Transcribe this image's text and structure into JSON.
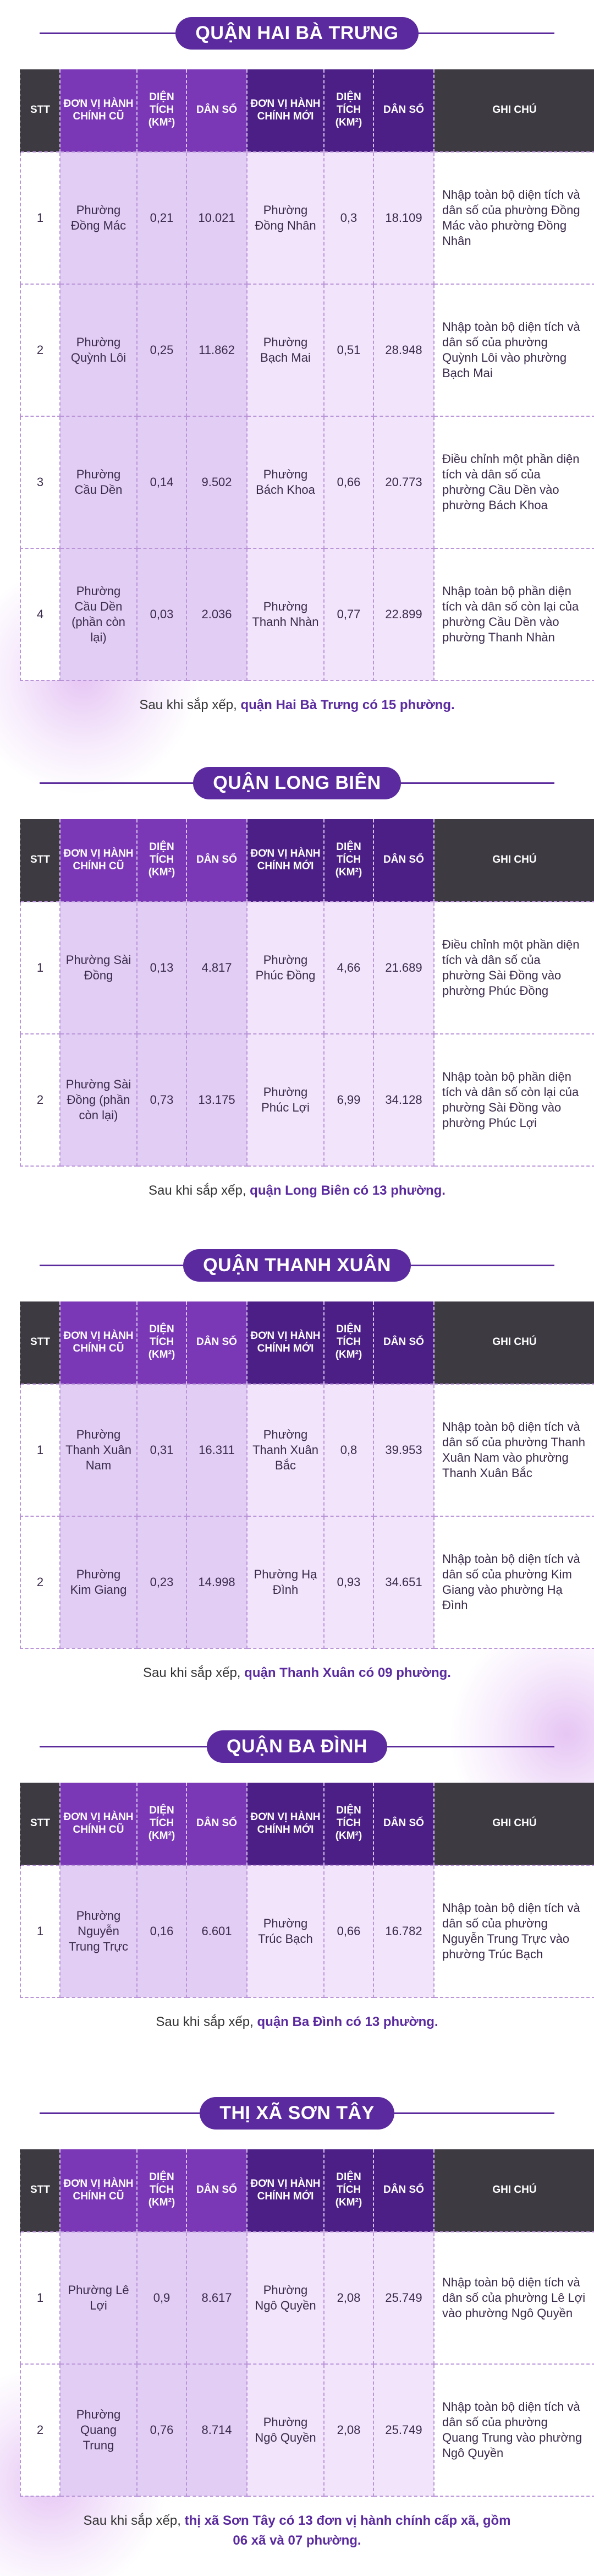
{
  "headers": {
    "stt": "STT",
    "old_unit": "ĐƠN VỊ HÀNH CHÍNH CŨ",
    "area": "DIỆN TÍCH (KM²)",
    "population": "DÂN SỐ",
    "new_unit": "ĐƠN VỊ HÀNH CHÍNH MỚI",
    "note": "GHI CHÚ"
  },
  "sections": [
    {
      "title": "QUẬN HAI BÀ TRƯNG",
      "rows": [
        {
          "stt": "1",
          "old": "Phường Đồng Mác",
          "old_area": "0,21",
          "old_pop": "10.021",
          "new": "Phường Đồng Nhân",
          "new_area": "0,3",
          "new_pop": "18.109",
          "note": "Nhập toàn bộ diện tích và dân số của phường Đồng Mác vào phường Đồng Nhân"
        },
        {
          "stt": "2",
          "old": "Phường Quỳnh Lôi",
          "old_area": "0,25",
          "old_pop": "11.862",
          "new": "Phường Bạch Mai",
          "new_area": "0,51",
          "new_pop": "28.948",
          "note": "Nhập toàn bộ diện tích và dân số của phường Quỳnh Lôi vào phường Bạch Mai"
        },
        {
          "stt": "3",
          "old": "Phường Cầu Dền",
          "old_area": "0,14",
          "old_pop": "9.502",
          "new": "Phường Bách Khoa",
          "new_area": "0,66",
          "new_pop": "20.773",
          "note": "Điều chỉnh một phần diện tích và dân số của phường Cầu Dền vào phường Bách Khoa"
        },
        {
          "stt": "4",
          "old": "Phường Cầu Dền (phần còn lại)",
          "old_area": "0,03",
          "old_pop": "2.036",
          "new": "Phường Thanh Nhàn",
          "new_area": "0,77",
          "new_pop": "22.899",
          "note": "Nhập toàn bộ phần diện tích và dân số còn lại của phường Cầu Dền vào phường Thanh Nhàn"
        }
      ],
      "caption_prefix": "Sau khi sắp xếp, ",
      "caption_bold": "quận Hai Bà Trưng có 15 phường."
    },
    {
      "title": "QUẬN LONG BIÊN",
      "rows": [
        {
          "stt": "1",
          "old": "Phường Sài Đồng",
          "old_area": "0,13",
          "old_pop": "4.817",
          "new": "Phường Phúc Đồng",
          "new_area": "4,66",
          "new_pop": "21.689",
          "note": "Điều chỉnh một phần diện tích và dân số của phường Sài Đồng vào phường Phúc Đồng"
        },
        {
          "stt": "2",
          "old": "Phường Sài Đồng (phần còn lại)",
          "old_area": "0,73",
          "old_pop": "13.175",
          "new": "Phường Phúc Lợi",
          "new_area": "6,99",
          "new_pop": "34.128",
          "note": "Nhập toàn bộ phần diện tích và dân số còn lại của phường Sài Đồng vào phường Phúc Lợi"
        }
      ],
      "caption_prefix": "Sau khi sắp xếp, ",
      "caption_bold": "quận Long Biên có 13 phường."
    },
    {
      "title": "QUẬN THANH XUÂN",
      "rows": [
        {
          "stt": "1",
          "old": "Phường Thanh Xuân Nam",
          "old_area": "0,31",
          "old_pop": "16.311",
          "new": "Phường Thanh Xuân Bắc",
          "new_area": "0,8",
          "new_pop": "39.953",
          "note": "Nhập toàn bộ diện tích và dân số của phường Thanh Xuân Nam vào phường Thanh Xuân Bắc"
        },
        {
          "stt": "2",
          "old": "Phường Kim Giang",
          "old_area": "0,23",
          "old_pop": "14.998",
          "new": "Phường Hạ Đình",
          "new_area": "0,93",
          "new_pop": "34.651",
          "note": "Nhập toàn bộ diện tích và dân số của phường Kim Giang vào phường Hạ Đình"
        }
      ],
      "caption_prefix": "Sau khi sắp xếp, ",
      "caption_bold": "quận Thanh Xuân có 09 phường."
    },
    {
      "title": "QUẬN BA ĐÌNH",
      "rows": [
        {
          "stt": "1",
          "old": "Phường Nguyễn Trung Trực",
          "old_area": "0,16",
          "old_pop": "6.601",
          "new": "Phường Trúc Bạch",
          "new_area": "0,66",
          "new_pop": "16.782",
          "note": "Nhập toàn bộ diện tích và dân số của phường Nguyễn Trung Trực vào phường Trúc Bạch"
        }
      ],
      "caption_prefix": "Sau khi sắp xếp, ",
      "caption_bold": "quận Ba Đình có 13 phường."
    },
    {
      "title": "THỊ XÃ SƠN TÂY",
      "rows": [
        {
          "stt": "1",
          "old": "Phường Lê Lợi",
          "old_area": "0,9",
          "old_pop": "8.617",
          "new": "Phường Ngô Quyền",
          "new_area": "2,08",
          "new_pop": "25.749",
          "note": "Nhập toàn bộ diện tích và dân số của phường Lê Lợi vào phường Ngô Quyền"
        },
        {
          "stt": "2",
          "old": "Phường Quang Trung",
          "old_area": "0,76",
          "old_pop": "8.714",
          "new": "Phường Ngô Quyền",
          "new_area": "2,08",
          "new_pop": "25.749",
          "note": "Nhập toàn bộ diện tích và dân số của phường Quang Trung vào phường Ngô Quyền"
        }
      ],
      "caption_prefix": "Sau khi sắp xếp, ",
      "caption_bold": "thị xã Sơn Tây có 13 đơn vị hành chính cấp xã, gồm 06 xã và 07 phường."
    }
  ]
}
